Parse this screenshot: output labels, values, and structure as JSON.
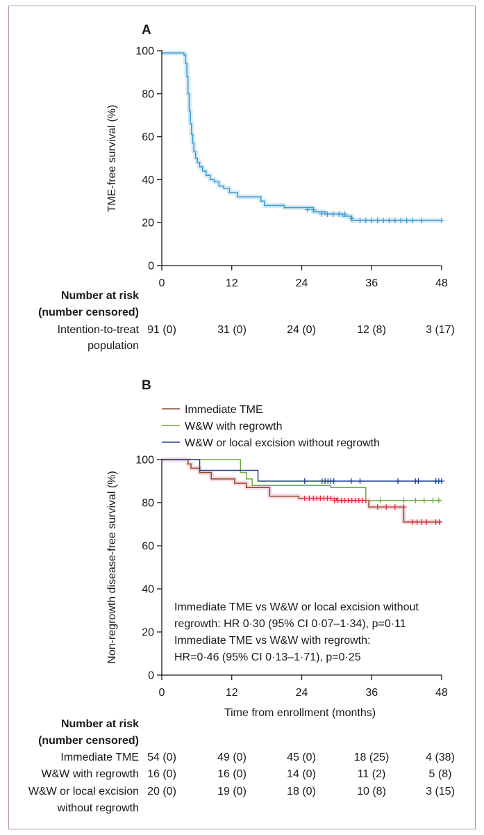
{
  "colors": {
    "frame": "#b48aa8",
    "axis": "#1a1a1a",
    "itt": "#3b9ad0",
    "itt_band": "#cfe6f3",
    "immediate_tme": "#8b4a26",
    "immediate_tme_band": "#f6d2dc",
    "immediate_tme_censor": "#d6303c",
    "ww_regrowth": "#6aaa3a",
    "ww_regrowth_censor": "#6aaa3a",
    "ww_no_regrowth": "#1f3f99",
    "ww_no_regrowth_censor": "#1f3f99"
  },
  "risk_tables": [
    {
      "header": [
        "Number at risk",
        "(number censored)"
      ],
      "rows": [
        {
          "label": [
            "Intention-to-treat",
            "population"
          ],
          "values": [
            "91 (0)",
            "31 (0)",
            "24 (0)",
            "12 (8)",
            "3 (17)"
          ]
        }
      ]
    },
    {
      "header": [
        "Number at risk",
        "(number censored)"
      ],
      "rows": [
        {
          "label": [
            "Immediate TME"
          ],
          "values": [
            "54 (0)",
            "49 (0)",
            "45 (0)",
            "18 (25)",
            "4 (38)"
          ]
        },
        {
          "label": [
            "W&W with regrowth"
          ],
          "values": [
            "16 (0)",
            "16 (0)",
            "14 (0)",
            "11 (2)",
            "5 (8)"
          ]
        },
        {
          "label": [
            "W&W or local excision",
            "without regrowth"
          ],
          "values": [
            "20 (0)",
            "19 (0)",
            "18 (0)",
            "10 (8)",
            "3 (15)"
          ]
        }
      ]
    }
  ],
  "chart_data": [
    {
      "type": "line",
      "panel_label": "A",
      "title": "",
      "xlabel": "",
      "ylabel": "TME-free survival (%)",
      "xlim": [
        0,
        48
      ],
      "ylim": [
        0,
        100
      ],
      "xticks": [
        0,
        12,
        24,
        36,
        48
      ],
      "yticks": [
        0,
        20,
        40,
        60,
        80,
        100
      ],
      "step": true,
      "series": [
        {
          "name": "Intention-to-treat population",
          "color_key": "itt",
          "band": true,
          "x": [
            0,
            3.8,
            4.1,
            4.3,
            4.5,
            4.7,
            4.9,
            5.1,
            5.3,
            5.5,
            5.8,
            6.1,
            6.5,
            7,
            7.6,
            8.3,
            9,
            9.8,
            10.6,
            11.6,
            13,
            17,
            17.6,
            21,
            26,
            28,
            31,
            32.5,
            48
          ],
          "y": [
            99,
            98,
            94,
            88,
            80,
            72,
            66,
            61,
            57,
            53,
            50,
            48,
            46,
            44,
            42,
            40,
            39,
            37,
            36,
            34,
            32,
            30,
            28,
            27,
            25,
            24,
            23,
            21,
            21
          ],
          "censored_x": [
            25,
            26,
            27.4,
            28.4,
            29.4,
            30.4,
            31.4,
            32.6,
            34,
            35,
            36,
            37,
            38,
            39,
            40,
            41,
            42,
            43,
            44.5,
            48
          ],
          "censored_y": [
            26,
            26,
            24,
            24,
            24,
            24,
            24,
            22,
            21,
            21,
            21,
            21,
            21,
            21,
            21,
            21,
            21,
            21,
            21,
            21
          ]
        }
      ]
    },
    {
      "type": "line",
      "panel_label": "B",
      "title": "",
      "xlabel": "Time from enrollment (months)",
      "ylabel": "Non-regrowth disease-free survival (%)",
      "xlim": [
        0,
        48
      ],
      "ylim": [
        0,
        100
      ],
      "xticks": [
        0,
        12,
        24,
        36,
        48
      ],
      "yticks": [
        0,
        20,
        40,
        60,
        80,
        100
      ],
      "step": true,
      "legend": [
        "Immediate TME",
        "W&W with regrowth",
        "W&W or local excision without regrowth"
      ],
      "legend_position": "top-left",
      "annotations": [
        "Immediate TME vs W&W or local excision without",
        "regrowth: HR 0·30 (95% CI 0·07–1·34), p=0·11",
        "Immediate TME vs W&W with regrowth:",
        "HR=0·46 (95% CI 0·13–1·71), p=0·25"
      ],
      "series": [
        {
          "name": "Immediate TME",
          "color_key": "immediate_tme",
          "censor_color_key": "immediate_tme_censor",
          "band": true,
          "x": [
            0,
            4.5,
            5,
            6.5,
            8.5,
            12.5,
            14.5,
            18.5,
            23.5,
            30,
            35.5,
            41.5,
            48
          ],
          "y": [
            100,
            98,
            96,
            94,
            91,
            89,
            87,
            83,
            82,
            81,
            78,
            71,
            71
          ],
          "censored_x": [
            24.5,
            25.3,
            26,
            26.6,
            27.2,
            27.8,
            28.4,
            29,
            29.6,
            30.2,
            30.8,
            31.4,
            32,
            32.6,
            33.2,
            33.8,
            34.4,
            35,
            37,
            38.5,
            40,
            41.5,
            43,
            43.8,
            44.6,
            45.4,
            47,
            47.6
          ],
          "censored_y": [
            82,
            82,
            82,
            82,
            82,
            82,
            82,
            82,
            81,
            81,
            81,
            81,
            81,
            81,
            81,
            81,
            81,
            81,
            78,
            78,
            78,
            78,
            71,
            71,
            71,
            71,
            71,
            71
          ]
        },
        {
          "name": "W&W with regrowth",
          "color_key": "ww_regrowth",
          "censor_color_key": "ww_regrowth_censor",
          "band": false,
          "x": [
            0,
            7,
            13.5,
            14.5,
            15.5,
            29,
            35,
            48
          ],
          "y": [
            100,
            100,
            94,
            91,
            88,
            87,
            81,
            81
          ],
          "censored_x": [
            37.5,
            41.5,
            43.5,
            45,
            46.5,
            47.5
          ],
          "censored_y": [
            81,
            81,
            81,
            81,
            81,
            81
          ]
        },
        {
          "name": "W&W or local excision without regrowth",
          "color_key": "ww_no_regrowth",
          "censor_color_key": "ww_no_regrowth_censor",
          "band": false,
          "x": [
            0,
            6.5,
            16.5,
            48
          ],
          "y": [
            100,
            95,
            90,
            90
          ],
          "censored_x": [
            24.5,
            27.5,
            28,
            28.5,
            29,
            29.5,
            32.5,
            34,
            40.5,
            43.5,
            44,
            47,
            47.5,
            48
          ],
          "censored_y": [
            90,
            90,
            90,
            90,
            90,
            90,
            90,
            90,
            90,
            90,
            90,
            90,
            90,
            90
          ]
        }
      ]
    }
  ]
}
